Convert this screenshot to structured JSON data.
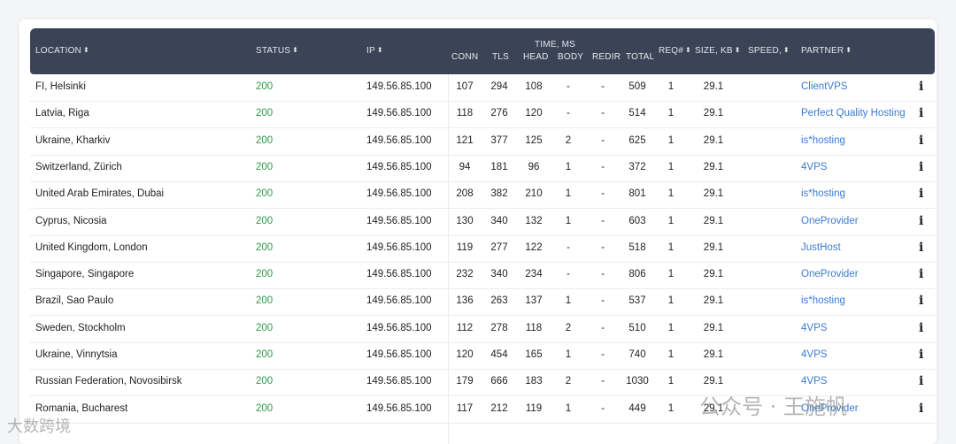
{
  "header": {
    "location": "LOCATION",
    "status": "STATUS",
    "ip": "IP",
    "time_ms": "TIME, MS",
    "conn": "CONN",
    "tls": "TLS",
    "head": "HEAD",
    "body": "BODY",
    "redir": "REDIR",
    "total": "TOTAL",
    "req": "REQ#",
    "size": "SIZE, KB",
    "speed": "SPEED,",
    "partner": "PARTNER",
    "sort_glyph": "⬍"
  },
  "rows": [
    {
      "location": "FI, Helsinki",
      "status": "200",
      "ip": "149.56.85.100",
      "conn": "107",
      "tls": "294",
      "head": "108",
      "body": "-",
      "redir": "-",
      "total": "509",
      "req": "1",
      "size": "29.1",
      "partner": "ClientVPS"
    },
    {
      "location": "Latvia, Riga",
      "status": "200",
      "ip": "149.56.85.100",
      "conn": "118",
      "tls": "276",
      "head": "120",
      "body": "-",
      "redir": "-",
      "total": "514",
      "req": "1",
      "size": "29.1",
      "partner": "Perfect Quality Hosting"
    },
    {
      "location": "Ukraine, Kharkiv",
      "status": "200",
      "ip": "149.56.85.100",
      "conn": "121",
      "tls": "377",
      "head": "125",
      "body": "2",
      "redir": "-",
      "total": "625",
      "req": "1",
      "size": "29.1",
      "partner": "is*hosting"
    },
    {
      "location": "Switzerland, Zürich",
      "status": "200",
      "ip": "149.56.85.100",
      "conn": "94",
      "tls": "181",
      "head": "96",
      "body": "1",
      "redir": "-",
      "total": "372",
      "req": "1",
      "size": "29.1",
      "partner": "4VPS"
    },
    {
      "location": "United Arab Emirates, Dubai",
      "status": "200",
      "ip": "149.56.85.100",
      "conn": "208",
      "tls": "382",
      "head": "210",
      "body": "1",
      "redir": "-",
      "total": "801",
      "req": "1",
      "size": "29.1",
      "partner": "is*hosting"
    },
    {
      "location": "Cyprus, Nicosia",
      "status": "200",
      "ip": "149.56.85.100",
      "conn": "130",
      "tls": "340",
      "head": "132",
      "body": "1",
      "redir": "-",
      "total": "603",
      "req": "1",
      "size": "29.1",
      "partner": "OneProvider"
    },
    {
      "location": "United Kingdom, London",
      "status": "200",
      "ip": "149.56.85.100",
      "conn": "119",
      "tls": "277",
      "head": "122",
      "body": "-",
      "redir": "-",
      "total": "518",
      "req": "1",
      "size": "29.1",
      "partner": "JustHost"
    },
    {
      "location": "Singapore, Singapore",
      "status": "200",
      "ip": "149.56.85.100",
      "conn": "232",
      "tls": "340",
      "head": "234",
      "body": "-",
      "redir": "-",
      "total": "806",
      "req": "1",
      "size": "29.1",
      "partner": "OneProvider"
    },
    {
      "location": "Brazil, Sao Paulo",
      "status": "200",
      "ip": "149.56.85.100",
      "conn": "136",
      "tls": "263",
      "head": "137",
      "body": "1",
      "redir": "-",
      "total": "537",
      "req": "1",
      "size": "29.1",
      "partner": "is*hosting"
    },
    {
      "location": "Sweden, Stockholm",
      "status": "200",
      "ip": "149.56.85.100",
      "conn": "112",
      "tls": "278",
      "head": "118",
      "body": "2",
      "redir": "-",
      "total": "510",
      "req": "1",
      "size": "29.1",
      "partner": "4VPS"
    },
    {
      "location": "Ukraine, Vinnytsia",
      "status": "200",
      "ip": "149.56.85.100",
      "conn": "120",
      "tls": "454",
      "head": "165",
      "body": "1",
      "redir": "-",
      "total": "740",
      "req": "1",
      "size": "29.1",
      "partner": "4VPS"
    },
    {
      "location": "Russian Federation, Novosibirsk",
      "status": "200",
      "ip": "149.56.85.100",
      "conn": "179",
      "tls": "666",
      "head": "183",
      "body": "2",
      "redir": "-",
      "total": "1030",
      "req": "1",
      "size": "29.1",
      "partner": "4VPS"
    },
    {
      "location": "Romania, Bucharest",
      "status": "200",
      "ip": "149.56.85.100",
      "conn": "117",
      "tls": "212",
      "head": "119",
      "body": "1",
      "redir": "-",
      "total": "449",
      "req": "1",
      "size": "29.1",
      "partner": "OneProvider"
    }
  ],
  "info_icon": "i",
  "watermarks": {
    "bottom_left": "大数跨境",
    "bottom_right": "公众号 · 王施帆"
  },
  "colors": {
    "header_bg": "#3b4456",
    "status_ok": "#2e9a4a",
    "partner_link": "#3a7bd5"
  }
}
